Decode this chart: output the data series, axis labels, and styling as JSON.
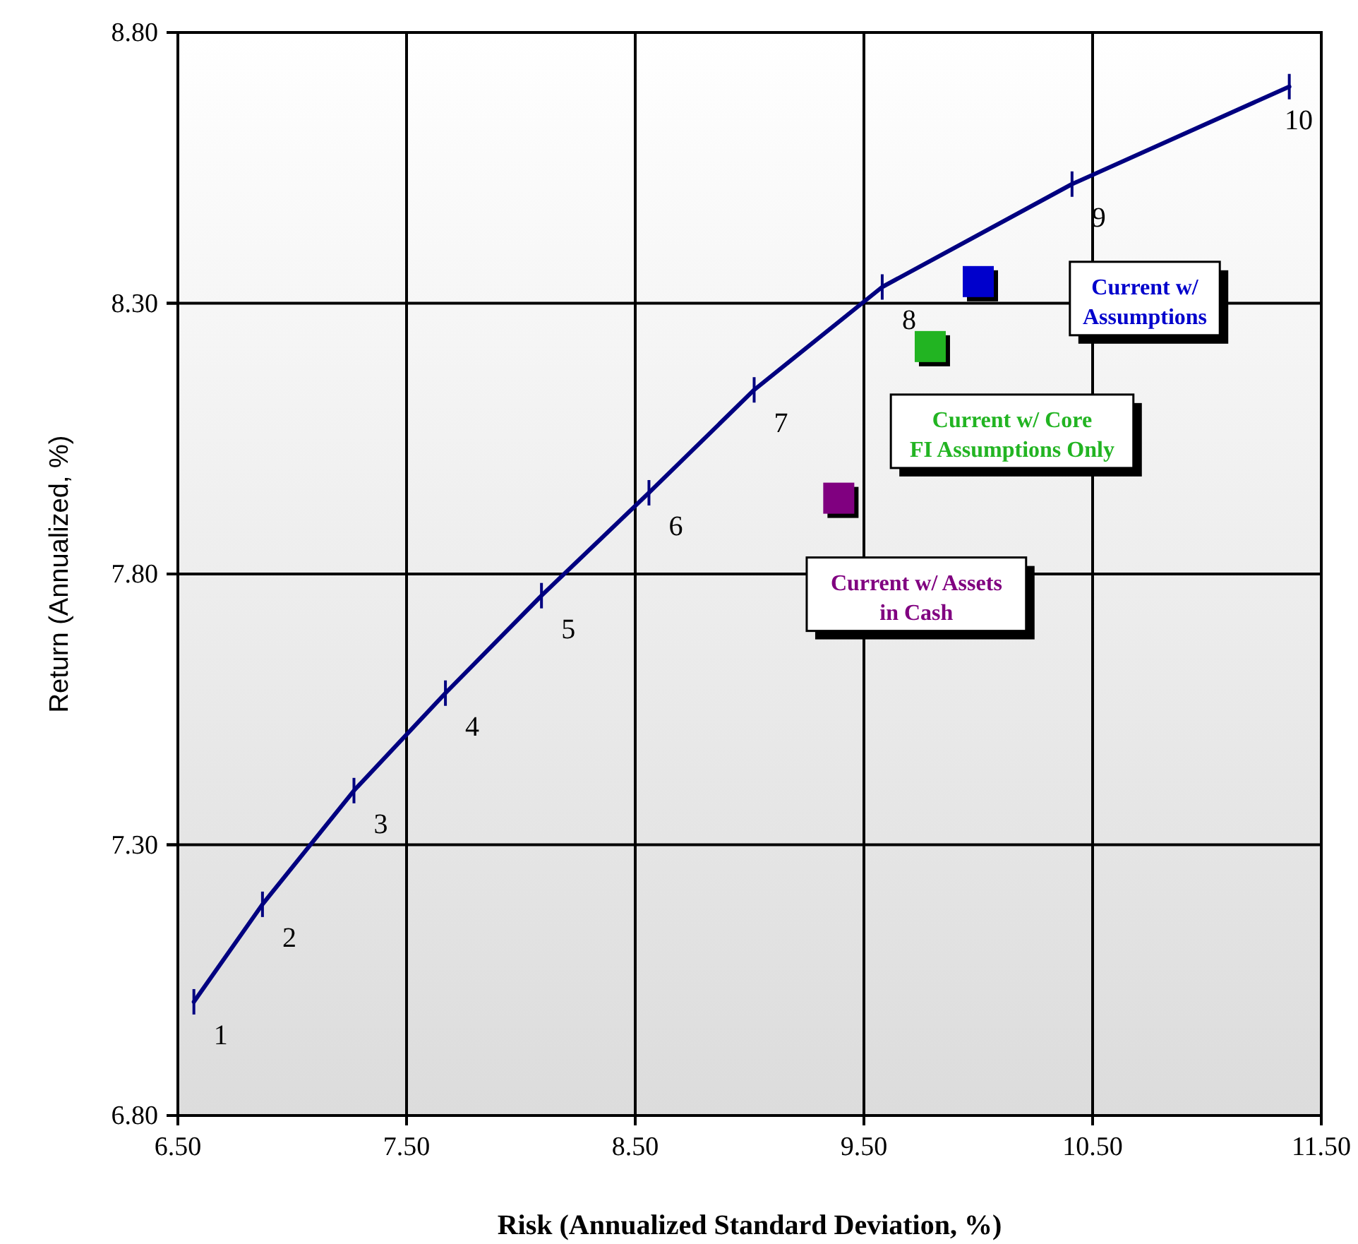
{
  "chart_data": {
    "type": "line",
    "xlabel": "Risk (Annualized Standard Deviation, %)",
    "ylabel": "Return (Annualized, %)",
    "xlim": [
      6.5,
      11.5
    ],
    "xticks": [
      {
        "value": 6.5,
        "label": "6.50"
      },
      {
        "value": 7.5,
        "label": "7.50"
      },
      {
        "value": 8.5,
        "label": "8.50"
      },
      {
        "value": 9.5,
        "label": "9.50"
      },
      {
        "value": 10.5,
        "label": "10.50"
      },
      {
        "value": 11.5,
        "label": "11.50"
      }
    ],
    "ylim": [
      6.8,
      8.8
    ],
    "yticks": [
      {
        "value": 6.8,
        "label": "6.80"
      },
      {
        "value": 7.3,
        "label": "7.30"
      },
      {
        "value": 7.8,
        "label": "7.80"
      },
      {
        "value": 8.3,
        "label": "8.30"
      },
      {
        "value": 8.8,
        "label": "8.80"
      }
    ],
    "grid": true,
    "annotations": [
      {
        "text": "1",
        "x": 6.57,
        "y": 7.01
      },
      {
        "text": "2",
        "x": 6.87,
        "y": 7.19
      },
      {
        "text": "3",
        "x": 7.27,
        "y": 7.4
      },
      {
        "text": "4",
        "x": 7.67,
        "y": 7.58
      },
      {
        "text": "5",
        "x": 8.09,
        "y": 7.76
      },
      {
        "text": "6",
        "x": 8.56,
        "y": 7.95
      },
      {
        "text": "7",
        "x": 9.02,
        "y": 8.14
      },
      {
        "text": "8",
        "x": 9.58,
        "y": 8.33
      },
      {
        "text": "9",
        "x": 10.41,
        "y": 8.52
      },
      {
        "text": "10",
        "x": 11.36,
        "y": 8.7
      }
    ],
    "series": [
      {
        "color": "#000080",
        "x": [
          6.57,
          6.87,
          7.27,
          7.67,
          8.09,
          8.56,
          9.02,
          9.58,
          10.41,
          11.36
        ],
        "values": [
          7.01,
          7.19,
          7.4,
          7.58,
          7.76,
          7.95,
          8.14,
          8.33,
          8.52,
          8.7
        ]
      },
      {
        "type": "scatter",
        "name": "Current w/ Assumptions",
        "color": "#0000cc",
        "marker": "square",
        "x": [
          10.0
        ],
        "values": [
          8.34
        ]
      },
      {
        "type": "scatter",
        "name": "Current w/ Core FI Assumptions Only",
        "color": "#22b422",
        "marker": "square",
        "x": [
          9.79
        ],
        "values": [
          8.22
        ]
      },
      {
        "type": "scatter",
        "name": "Current w/ Assets in Cash",
        "color": "#800080",
        "marker": "square",
        "x": [
          9.39
        ],
        "values": [
          7.94
        ]
      }
    ]
  }
}
